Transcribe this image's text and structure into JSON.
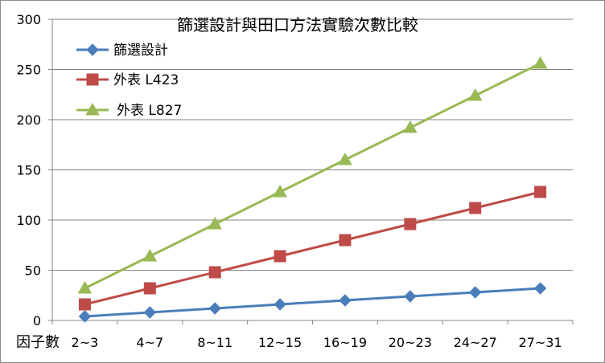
{
  "chart_data": {
    "type": "line",
    "title": "篩選設計與田口方法實驗次數比較",
    "xlabel": "因子數",
    "ylabel": "",
    "categories": [
      "2~3",
      "4~7",
      "8~11",
      "12~15",
      "16~19",
      "20~23",
      "24~27",
      "27~31"
    ],
    "ylim": [
      0,
      300
    ],
    "yticks": [
      0,
      50,
      100,
      150,
      200,
      250,
      300
    ],
    "grid": true,
    "legend_position": "top-left",
    "series": [
      {
        "name": "篩選設計",
        "values": [
          4,
          8,
          12,
          16,
          20,
          24,
          28,
          32
        ],
        "color": "#4a7ebb",
        "marker": "diamond"
      },
      {
        "name": "外表 L423",
        "values": [
          16,
          32,
          48,
          64,
          80,
          96,
          112,
          128
        ],
        "color": "#be4b48",
        "marker": "square"
      },
      {
        "name": "外表 L827",
        "values": [
          32,
          64,
          96,
          128,
          160,
          192,
          224,
          256
        ],
        "color": "#98b954",
        "marker": "triangle"
      }
    ]
  }
}
